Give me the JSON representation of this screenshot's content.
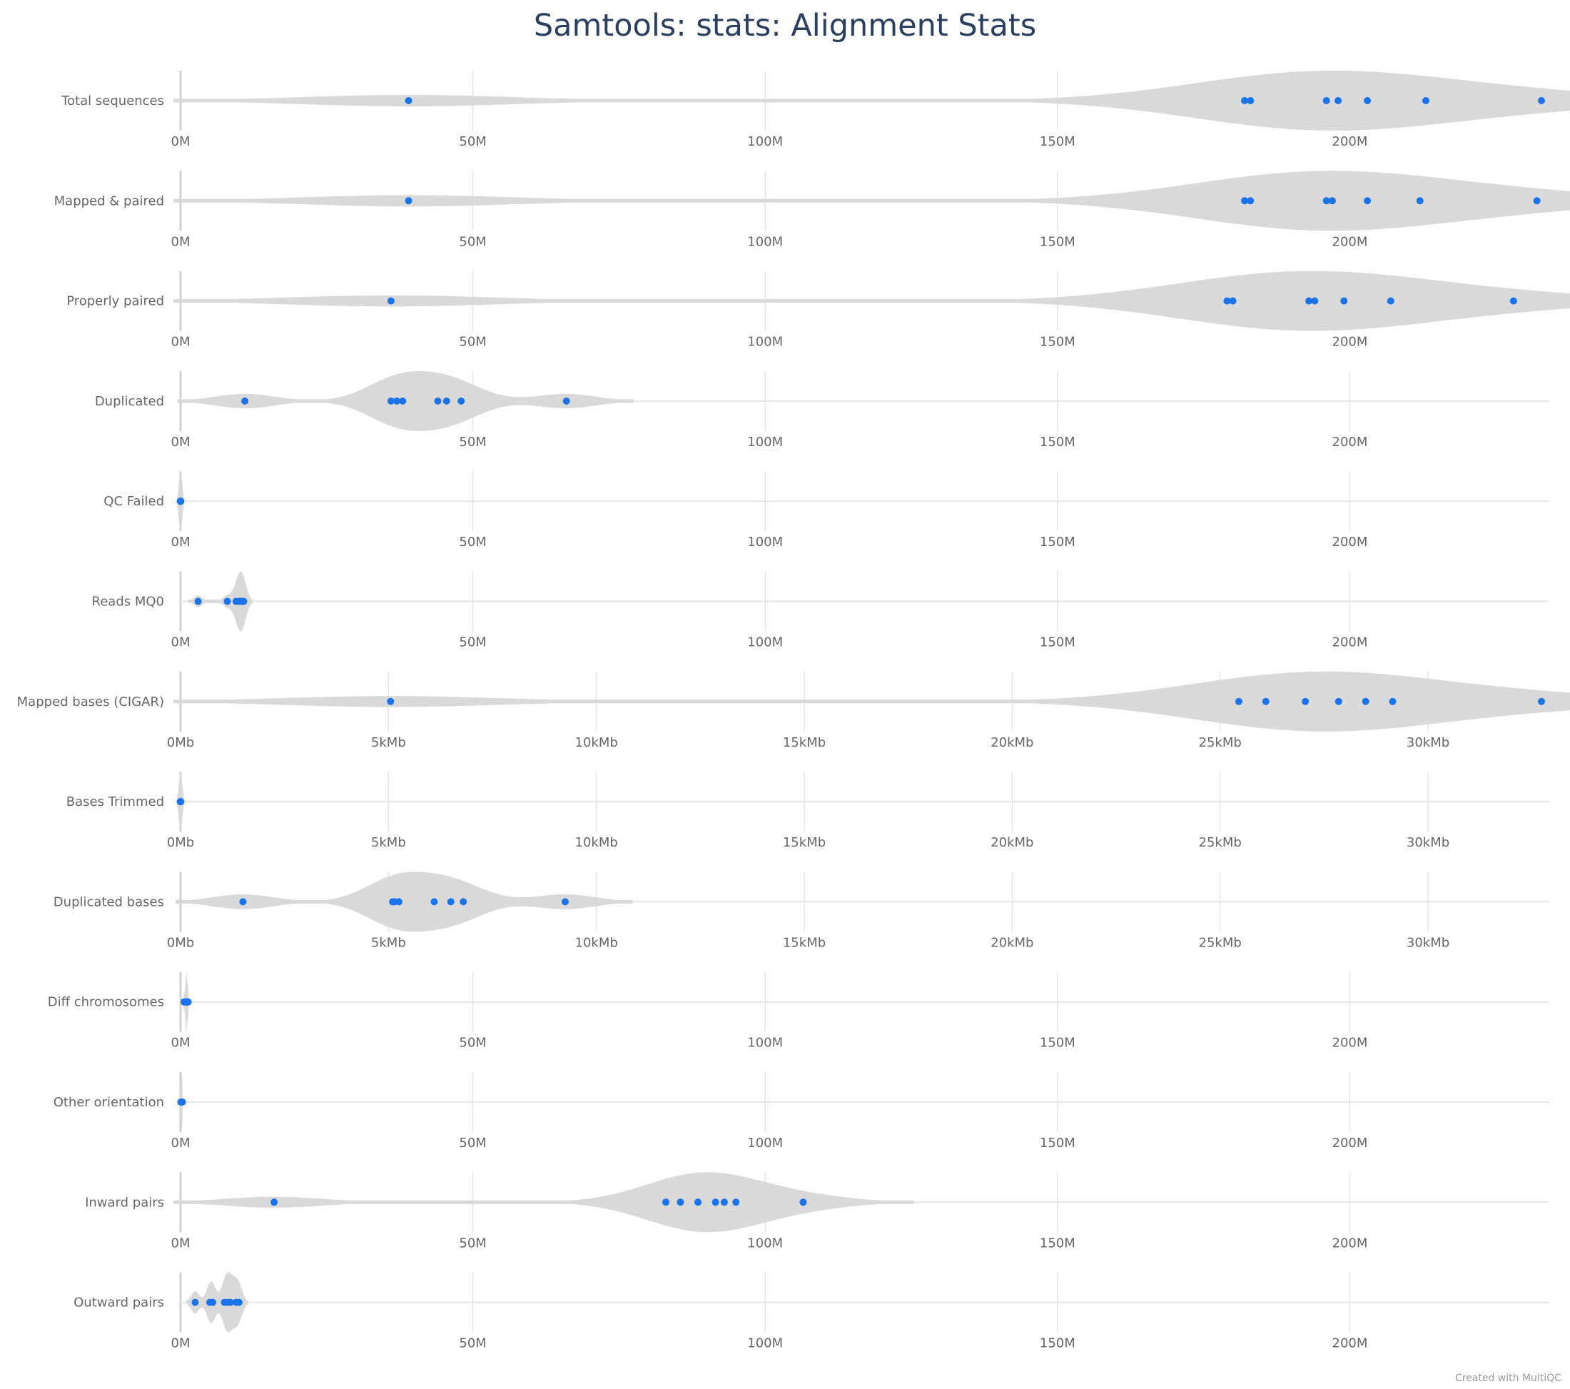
{
  "chart_data": {
    "type": "violin",
    "title": "Samtools: stats: Alignment Stats",
    "credit": "Created with MultiQC",
    "colors": {
      "violin": "#d9d9d9",
      "point": "#1a73e8",
      "grid": "#e5e5e5",
      "baseline": "#d0d0d0"
    },
    "axes": {
      "reads": {
        "xlim": [
          0,
          234
        ],
        "ticks": [
          0,
          50,
          100,
          150,
          200
        ],
        "tick_labels": [
          "0M",
          "50M",
          "100M",
          "150M",
          "200M"
        ]
      },
      "bases": {
        "xlim": [
          0,
          32.9
        ],
        "ticks": [
          0,
          5,
          10,
          15,
          20,
          25,
          30
        ],
        "tick_labels": [
          "0Mb",
          "5kMb",
          "10kMb",
          "15kMb",
          "20kMb",
          "25kMb",
          "30kMb"
        ]
      }
    },
    "rows": [
      {
        "label": "Total sequences",
        "axis": "reads",
        "values": [
          39,
          182,
          183,
          196,
          198,
          203,
          213,
          233
        ]
      },
      {
        "label": "Mapped & paired",
        "axis": "reads",
        "values": [
          39,
          182,
          183,
          196,
          197,
          203,
          212,
          232
        ]
      },
      {
        "label": "Properly paired",
        "axis": "reads",
        "values": [
          36,
          179,
          180,
          193,
          194,
          199,
          207,
          228
        ]
      },
      {
        "label": "Duplicated",
        "axis": "reads",
        "values": [
          11,
          36,
          37,
          38,
          44,
          45.5,
          48,
          66
        ]
      },
      {
        "label": "QC Failed",
        "axis": "reads",
        "values": [
          0,
          0,
          0,
          0,
          0,
          0,
          0,
          0
        ]
      },
      {
        "label": "Reads MQ0",
        "axis": "reads",
        "values": [
          3,
          8,
          9.5,
          10,
          10.2,
          10.5,
          10.5,
          10.8
        ]
      },
      {
        "label": "Mapped bases (CIGAR)",
        "axis": "bases",
        "values": [
          5.05,
          25.45,
          26.1,
          27.05,
          27.85,
          28.5,
          29.15,
          32.8
        ]
      },
      {
        "label": "Bases Trimmed",
        "axis": "bases",
        "values": [
          0,
          0,
          0,
          0,
          0,
          0,
          0,
          0
        ]
      },
      {
        "label": "Duplicated bases",
        "axis": "bases",
        "values": [
          1.5,
          5.1,
          5.15,
          5.25,
          6.1,
          6.5,
          6.8,
          9.25
        ]
      },
      {
        "label": "Diff chromosomes",
        "axis": "reads",
        "values": [
          0.6,
          0.8,
          0.9,
          1.0,
          1.0,
          1.1,
          1.2,
          1.3
        ]
      },
      {
        "label": "Other orientation",
        "axis": "reads",
        "values": [
          0.05,
          0.1,
          0.15,
          0.2,
          0.2,
          0.25,
          0.3,
          0.3
        ]
      },
      {
        "label": "Inward pairs",
        "axis": "reads",
        "values": [
          16,
          83,
          85.5,
          88.5,
          91.5,
          93,
          95,
          106.5
        ]
      },
      {
        "label": "Outward pairs",
        "axis": "reads",
        "values": [
          2.5,
          5,
          5.5,
          7.5,
          8,
          8.5,
          9.5,
          10
        ]
      }
    ]
  }
}
